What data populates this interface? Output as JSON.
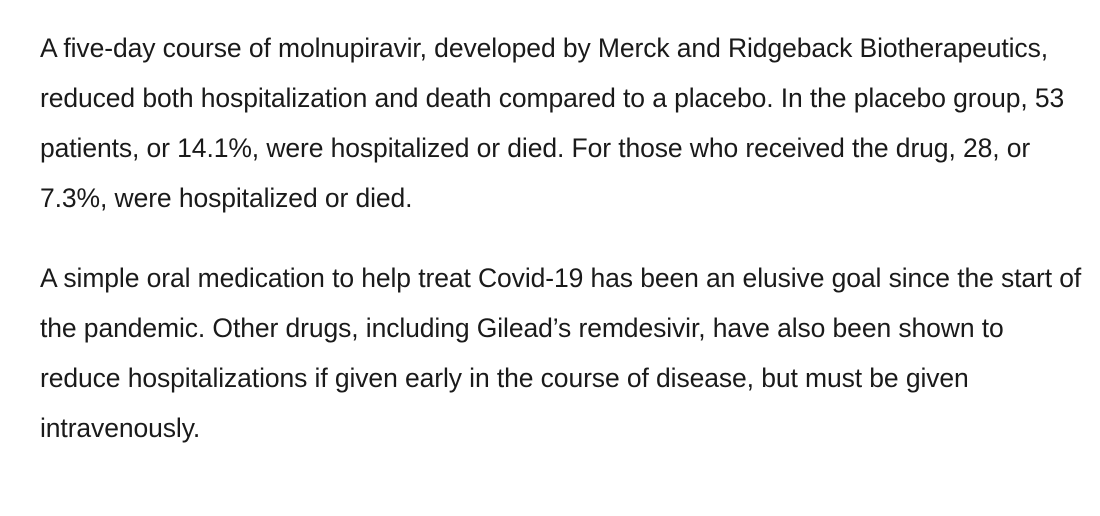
{
  "article": {
    "paragraphs": [
      "A five-day course of molnupiravir, developed by Merck and Ridgeback Biotherapeutics, reduced both hospitalization and death compared to a placebo. In the placebo group, 53 patients, or 14.1%, were hospitalized or died. For those who received the drug, 28, or 7.3%, were hospitalized or died.",
      "A simple oral medication to help treat Covid-19 has been an elusive goal since the start of the pandemic. Other drugs, including Gilead’s remdesivir, have also been shown to reduce hospitalizations if given early in the course of disease, but must be given intravenously."
    ]
  }
}
